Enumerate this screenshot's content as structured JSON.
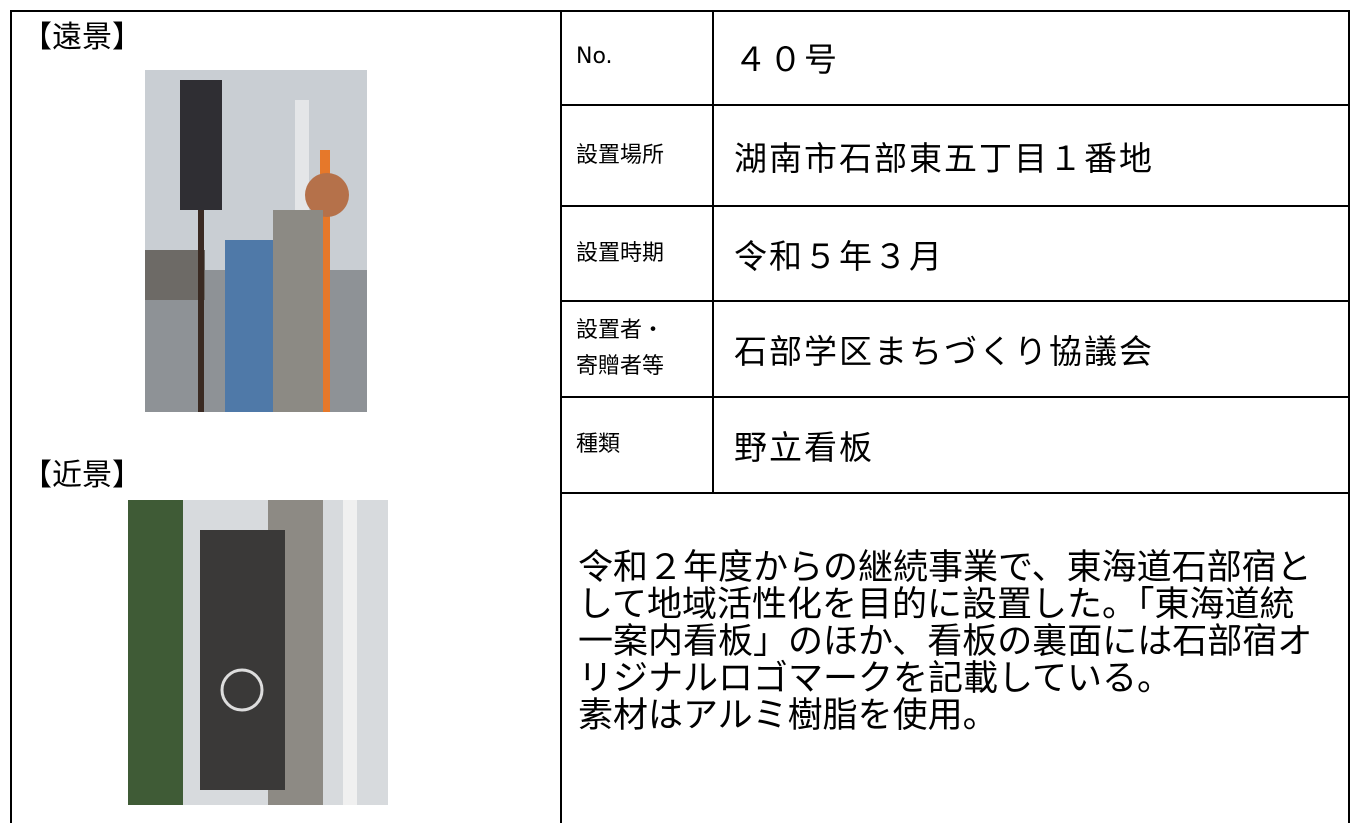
{
  "left": {
    "far_label": "【遠景】",
    "near_label": "【近景】"
  },
  "table": {
    "rows": [
      [
        "No.",
        "４０号"
      ],
      [
        "設置場所",
        "湖南市石部東五丁目１番地"
      ],
      [
        "設置時期",
        "令和５年３月"
      ],
      [
        "設置者・寄贈者等",
        "石部学区まちづくり協議会"
      ],
      [
        "種類",
        "野立看板"
      ]
    ],
    "description": [
      "令和２年度からの継続事業で、東海道石部宿と",
      "して地域活性化を目的に設置した。「東海道統",
      "一案内看板」のほか、看板の裏面には石部宿オ",
      "リジナルロゴマークを記載している。",
      "素材はアルミ樹脂を使用。"
    ]
  }
}
